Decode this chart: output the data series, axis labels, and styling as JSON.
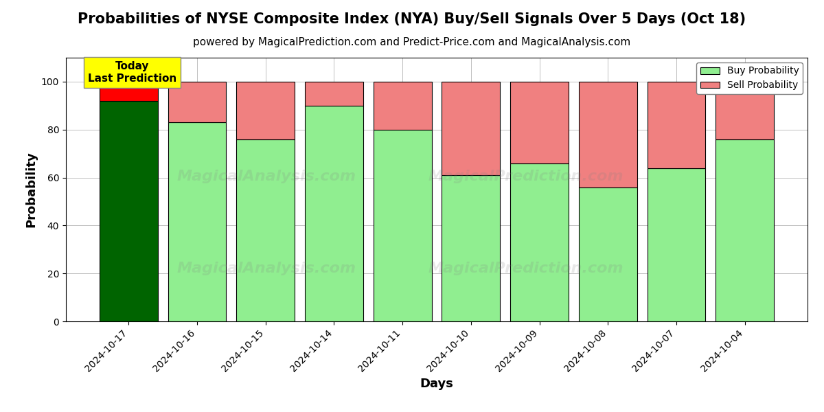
{
  "title": "Probabilities of NYSE Composite Index (NYA) Buy/Sell Signals Over 5 Days (Oct 18)",
  "subtitle": "powered by MagicalPrediction.com and Predict-Price.com and MagicalAnalysis.com",
  "xlabel": "Days",
  "ylabel": "Probability",
  "dates": [
    "2024-10-17",
    "2024-10-16",
    "2024-10-15",
    "2024-10-14",
    "2024-10-11",
    "2024-10-10",
    "2024-10-09",
    "2024-10-08",
    "2024-10-07",
    "2024-10-04"
  ],
  "buy_values": [
    92,
    83,
    76,
    90,
    80,
    61,
    66,
    56,
    64,
    76
  ],
  "sell_values": [
    8,
    17,
    24,
    10,
    20,
    39,
    34,
    44,
    36,
    24
  ],
  "today_bar_buy_color": "#006400",
  "today_bar_sell_color": "#FF0000",
  "other_bar_buy_color": "#90EE90",
  "other_bar_sell_color": "#F08080",
  "bar_edge_color": "#000000",
  "ylim": [
    0,
    110
  ],
  "yticks": [
    0,
    20,
    40,
    60,
    80,
    100
  ],
  "dashed_line_y": 110,
  "legend_buy_color": "#90EE90",
  "legend_sell_color": "#F08080",
  "today_annotation_bg": "#FFFF00",
  "today_annotation_text": "Today\nLast Prediction",
  "title_fontsize": 15,
  "subtitle_fontsize": 11,
  "axis_label_fontsize": 13,
  "tick_fontsize": 10
}
